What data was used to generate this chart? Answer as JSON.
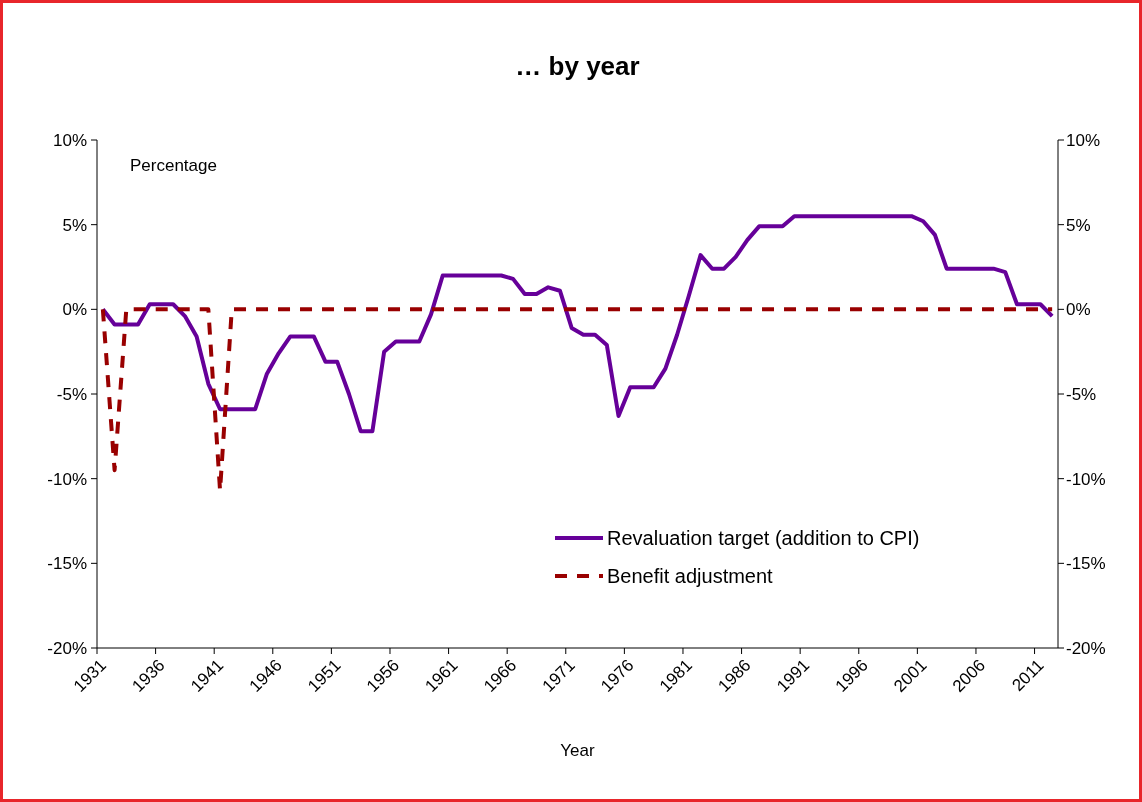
{
  "chart_data": {
    "type": "line",
    "title": "… by year",
    "xlabel": "Year",
    "ylabel": "Percentage",
    "x": [
      1931,
      1932,
      1933,
      1934,
      1935,
      1936,
      1937,
      1938,
      1939,
      1940,
      1941,
      1942,
      1943,
      1944,
      1945,
      1946,
      1947,
      1948,
      1949,
      1950,
      1951,
      1952,
      1953,
      1954,
      1955,
      1956,
      1957,
      1958,
      1959,
      1960,
      1961,
      1962,
      1963,
      1964,
      1965,
      1966,
      1967,
      1968,
      1969,
      1970,
      1971,
      1972,
      1973,
      1974,
      1975,
      1976,
      1977,
      1978,
      1979,
      1980,
      1981,
      1982,
      1983,
      1984,
      1985,
      1986,
      1987,
      1988,
      1989,
      1990,
      1991,
      1992,
      1993,
      1994,
      1995,
      1996,
      1997,
      1998,
      1999,
      2000,
      2001,
      2002,
      2003,
      2004,
      2005,
      2006,
      2007,
      2008,
      2009,
      2010,
      2011,
      2012
    ],
    "series": [
      {
        "name": "Revaluation target (addition to CPI)",
        "color": "#660099",
        "line_style": "solid",
        "values": [
          0,
          -0.9,
          -0.9,
          -0.9,
          0.3,
          0.3,
          0.3,
          -0.4,
          -1.6,
          -4.4,
          -5.9,
          -5.9,
          -5.9,
          -5.9,
          -3.8,
          -2.6,
          -1.6,
          -1.6,
          -1.6,
          -3.1,
          -3.1,
          -5.0,
          -7.2,
          -7.2,
          -2.5,
          -1.9,
          -1.9,
          -1.9,
          -0.3,
          2.0,
          2.0,
          2.0,
          2.0,
          2.0,
          2.0,
          1.8,
          0.9,
          0.9,
          1.3,
          1.1,
          -1.1,
          -1.5,
          -1.5,
          -2.1,
          -6.3,
          -4.6,
          -4.6,
          -4.6,
          -3.5,
          -1.5,
          0.8,
          3.2,
          2.4,
          2.4,
          3.1,
          4.1,
          4.9,
          4.9,
          4.9,
          5.5,
          5.5,
          5.5,
          5.5,
          5.5,
          5.5,
          5.5,
          5.5,
          5.5,
          5.5,
          5.5,
          5.2,
          4.4,
          2.4,
          2.4,
          2.4,
          2.4,
          2.4,
          2.2,
          0.3,
          0.3,
          0.3,
          -0.4
        ]
      },
      {
        "name": "Benefit adjustment",
        "color": "#990000",
        "line_style": "dashed",
        "values": [
          0,
          -9.5,
          0,
          0,
          0,
          0,
          0,
          0,
          0,
          0,
          -10.7,
          0,
          0,
          0,
          0,
          0,
          0,
          0,
          0,
          0,
          0,
          0,
          0,
          0,
          0,
          0,
          0,
          0,
          0,
          0,
          0,
          0,
          0,
          0,
          0,
          0,
          0,
          0,
          0,
          0,
          0,
          0,
          0,
          0,
          0,
          0,
          0,
          0,
          0,
          0,
          0,
          0,
          0,
          0,
          0,
          0,
          0,
          0,
          0,
          0,
          0,
          0,
          0,
          0,
          0,
          0,
          0,
          0,
          0,
          0,
          0,
          0,
          0,
          0,
          0,
          0,
          0,
          0,
          0,
          0,
          0,
          0
        ]
      }
    ],
    "xlim": [
      1930.5,
      2012.5
    ],
    "xticks": [
      {
        "value": 1930.5,
        "label": "1931"
      },
      {
        "value": 1935.5,
        "label": "1936"
      },
      {
        "value": 1940.5,
        "label": "1941"
      },
      {
        "value": 1945.5,
        "label": "1946"
      },
      {
        "value": 1950.5,
        "label": "1951"
      },
      {
        "value": 1955.5,
        "label": "1956"
      },
      {
        "value": 1960.5,
        "label": "1961"
      },
      {
        "value": 1965.5,
        "label": "1966"
      },
      {
        "value": 1970.5,
        "label": "1971"
      },
      {
        "value": 1975.5,
        "label": "1976"
      },
      {
        "value": 1980.5,
        "label": "1981"
      },
      {
        "value": 1985.5,
        "label": "1986"
      },
      {
        "value": 1990.5,
        "label": "1991"
      },
      {
        "value": 1995.5,
        "label": "1996"
      },
      {
        "value": 2000.5,
        "label": "2001"
      },
      {
        "value": 2005.5,
        "label": "2006"
      },
      {
        "value": 2010.5,
        "label": "2011"
      }
    ],
    "ylim": [
      -20,
      10
    ],
    "yticks": [
      {
        "value": -20,
        "label": "-20%"
      },
      {
        "value": -15,
        "label": "-15%"
      },
      {
        "value": -10,
        "label": "-10%"
      },
      {
        "value": -5,
        "label": "-5%"
      },
      {
        "value": 0,
        "label": "0%"
      },
      {
        "value": 5,
        "label": "5%"
      },
      {
        "value": 10,
        "label": "10%"
      }
    ],
    "y2lim": [
      -20,
      10
    ],
    "y2ticks": [
      {
        "value": -20,
        "label": "-20%"
      },
      {
        "value": -15,
        "label": "-15%"
      },
      {
        "value": -10,
        "label": "-10%"
      },
      {
        "value": -5,
        "label": "-5%"
      },
      {
        "value": 0,
        "label": "0%"
      },
      {
        "value": 5,
        "label": "5%"
      },
      {
        "value": 10,
        "label": "10%"
      }
    ],
    "grid": false,
    "legend": "bottom right",
    "marker": "none"
  }
}
